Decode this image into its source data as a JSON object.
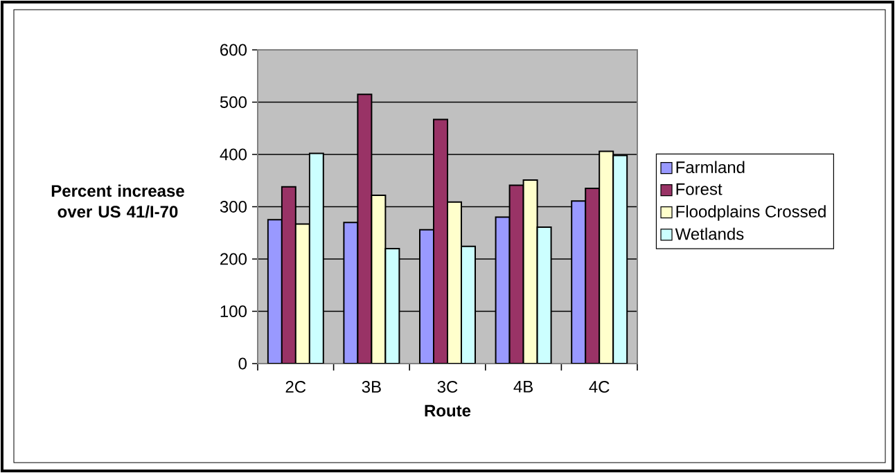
{
  "chart_data": {
    "type": "bar",
    "xlabel": "Route",
    "ylabel": "Percent increase over US 41/I-70",
    "categories": [
      "2C",
      "3B",
      "3C",
      "4B",
      "4C"
    ],
    "series": [
      {
        "name": "Farmland",
        "color": "#9999ff",
        "values": [
          275,
          270,
          256,
          280,
          311
        ]
      },
      {
        "name": "Forest",
        "color": "#993366",
        "values": [
          338,
          515,
          467,
          341,
          335
        ]
      },
      {
        "name": "Floodplains Crossed",
        "color": "#ffffcc",
        "values": [
          267,
          322,
          309,
          351,
          406
        ]
      },
      {
        "name": "Wetlands",
        "color": "#ccffff",
        "values": [
          402,
          220,
          224,
          261,
          398
        ]
      }
    ],
    "ylim": [
      0,
      600
    ],
    "yticks": [
      0,
      100,
      200,
      300,
      400,
      500,
      600
    ],
    "grid": "y",
    "legend": "right"
  }
}
